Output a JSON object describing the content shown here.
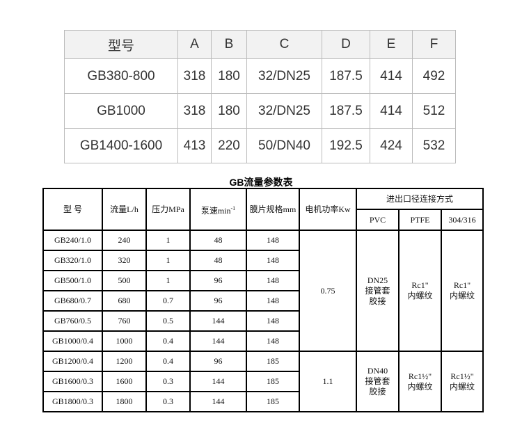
{
  "dimensions_table": {
    "headers": [
      "型号",
      "A",
      "B",
      "C",
      "D",
      "E",
      "F"
    ],
    "rows": [
      [
        "GB380-800",
        "318",
        "180",
        "32/DN25",
        "187.5",
        "414",
        "492"
      ],
      [
        "GB1000",
        "318",
        "180",
        "32/DN25",
        "187.5",
        "414",
        "512"
      ],
      [
        "GB1400-1600",
        "413",
        "220",
        "50/DN40",
        "192.5",
        "424",
        "532"
      ]
    ]
  },
  "flow_table": {
    "title": "GB流量参数表",
    "headers": {
      "model": "型    号",
      "flow": "流量L/h",
      "pressure": "压力MPa",
      "speed": "泵速min",
      "speed_sup": "-1",
      "diaphragm": "膜片规格mm",
      "power": "电机功率Kw",
      "connection": "进出口径连接方式",
      "pvc": "PVC",
      "ptfe": "PTFE",
      "ss": "304/316"
    },
    "rows": [
      [
        "GB240/1.0",
        "240",
        "1",
        "48",
        "148"
      ],
      [
        "GB320/1.0",
        "320",
        "1",
        "48",
        "148"
      ],
      [
        "GB500/1.0",
        "500",
        "1",
        "96",
        "148"
      ],
      [
        "GB680/0.7",
        "680",
        "0.7",
        "96",
        "148"
      ],
      [
        "GB760/0.5",
        "760",
        "0.5",
        "144",
        "148"
      ],
      [
        "GB1000/0.4",
        "1000",
        "0.4",
        "144",
        "148"
      ],
      [
        "GB1200/0.4",
        "1200",
        "0.4",
        "96",
        "185"
      ],
      [
        "GB1600/0.3",
        "1600",
        "0.3",
        "144",
        "185"
      ],
      [
        "GB1800/0.3",
        "1800",
        "0.3",
        "144",
        "185"
      ]
    ],
    "groups": [
      {
        "power": "0.75",
        "pvc": [
          "DN25",
          "接管套",
          "胶接"
        ],
        "ptfe": [
          "Rc1\"",
          "内螺纹"
        ],
        "ss": [
          "Rc1\"",
          "内螺纹"
        ]
      },
      {
        "power": "1.1",
        "pvc": [
          "DN40",
          "接管套",
          "胶接"
        ],
        "ptfe": [
          "Rc1½\"",
          "内螺纹"
        ],
        "ss": [
          "Rc1½\"",
          "内螺纹"
        ]
      }
    ]
  }
}
